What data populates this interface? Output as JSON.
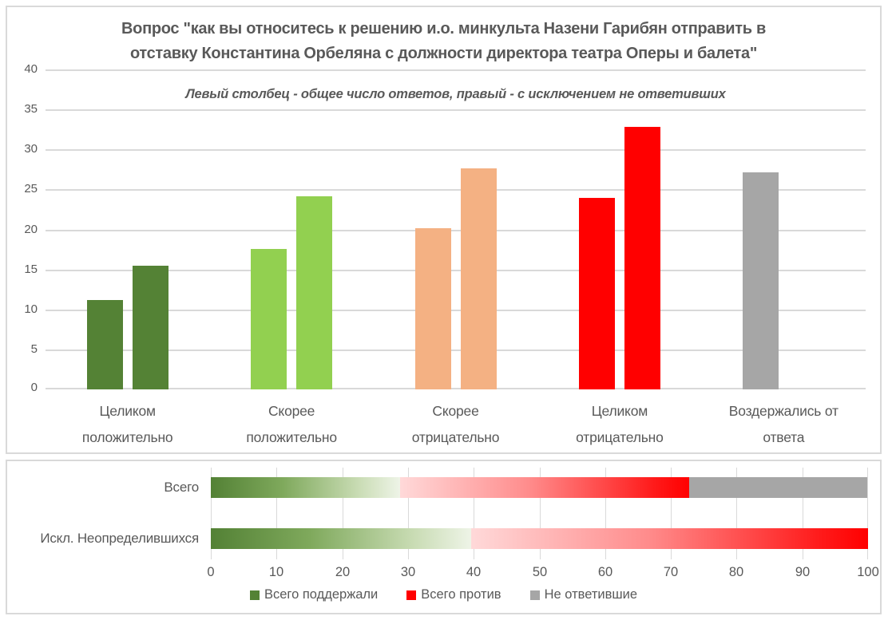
{
  "colors": {
    "strong_positive": "#548235",
    "rather_positive": "#92d050",
    "rather_negative": "#f4b183",
    "strong_negative": "#ff0000",
    "abstained": "#a6a6a6",
    "grid": "#d9d9d9",
    "text": "#595959"
  },
  "chart_data": [
    {
      "type": "bar",
      "orientation": "vertical",
      "title": "Вопрос \"как вы относитесь к решению и.о. минкульта Назени Гарибян отправить в отставку Константина Орбеляна с должности директора театра Оперы и балета\"",
      "title_lines": [
        "Вопрос \"как вы относитесь к решению и.о. минкульта Назени Гарибян отправить в",
        "отставку Константина Орбеляна с должности директора театра Оперы и балета\""
      ],
      "subtitle": "Левый столбец - общее число ответов, правый - с исключением не ответивших",
      "categories": [
        "Целиком положительно",
        "Скорее положительно",
        "Скорее отрицательно",
        "Целиком отрицательно",
        "Воздержались от ответа"
      ],
      "category_label_lines": [
        [
          "Целиком",
          "положительно"
        ],
        [
          "Скорее",
          "положительно"
        ],
        [
          "Скорее",
          "отрицательно"
        ],
        [
          "Целиком",
          "отрицательно"
        ],
        [
          "Воздержались от",
          "ответа"
        ]
      ],
      "category_colors": [
        "#548235",
        "#92d050",
        "#f4b183",
        "#ff0000",
        "#a6a6a6"
      ],
      "series": [
        {
          "name": "общее число ответов",
          "values": [
            11.2,
            17.6,
            20.1,
            23.9,
            27.1
          ]
        },
        {
          "name": "с исключением не ответивших",
          "values": [
            15.5,
            24.1,
            27.6,
            32.8,
            null
          ]
        }
      ],
      "ylim": [
        0,
        40
      ],
      "yticks": [
        0,
        5,
        10,
        15,
        20,
        25,
        30,
        35,
        40
      ],
      "grid": true,
      "legend_position": "none"
    },
    {
      "type": "bar",
      "orientation": "horizontal-stacked",
      "categories": [
        "Всего",
        "Искл. Неопределившихся"
      ],
      "series": [
        {
          "name": "Всего поддержали",
          "color": "#548235",
          "gradient": "green",
          "values": [
            28.8,
            39.6
          ]
        },
        {
          "name": "Всего против",
          "color": "#ff0000",
          "gradient": "red",
          "values": [
            44.0,
            60.4
          ]
        },
        {
          "name": "Не ответившие",
          "color": "#a6a6a6",
          "gradient": "solid",
          "values": [
            27.1,
            0
          ]
        }
      ],
      "xlim": [
        0,
        100
      ],
      "xticks": [
        0,
        10,
        20,
        30,
        40,
        50,
        60,
        70,
        80,
        90,
        100
      ],
      "grid": true,
      "legend_position": "bottom"
    }
  ]
}
